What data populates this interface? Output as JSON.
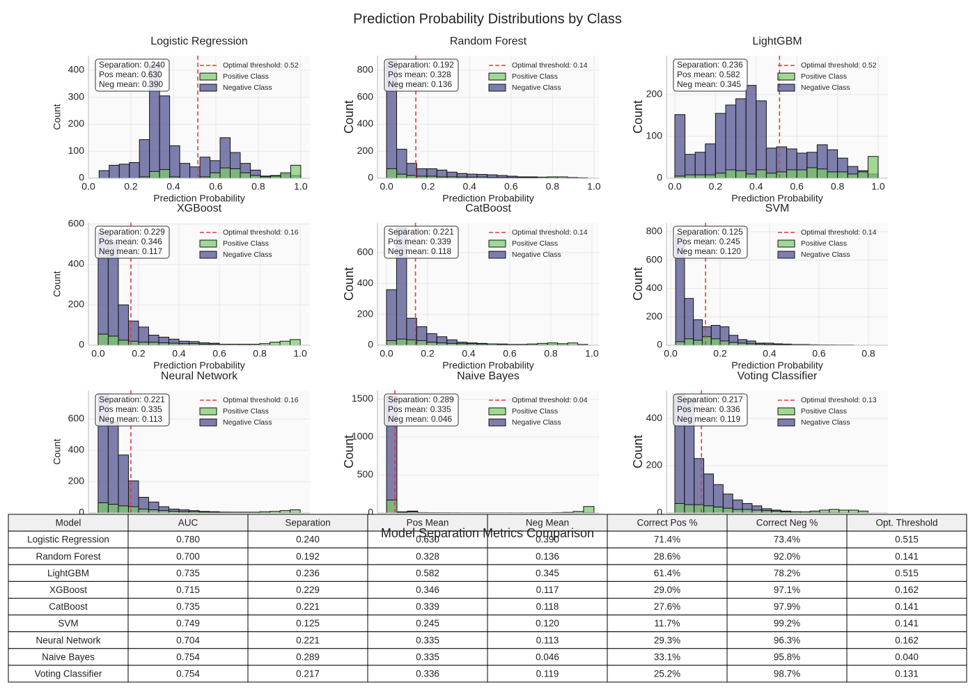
{
  "title": "Prediction Probability Distributions by Class",
  "chart_data": [
    {
      "type": "histogram",
      "title": "Logistic Regression",
      "xlabel": "Prediction Probability",
      "ylabel": "Count",
      "grid": true,
      "legend": "upper right",
      "annotation": [
        "Separation: 0.240",
        "Pos mean: 0.630",
        "Neg mean: 0.390"
      ],
      "threshold": {
        "value": 0.515,
        "label": "Optimal threshold: 0.52",
        "color": "#e8383d"
      },
      "bins": [
        0.05,
        0.0975,
        0.145,
        0.1925,
        0.24,
        0.2875,
        0.335,
        0.3825,
        0.43,
        0.4775,
        0.525,
        0.5725,
        0.62,
        0.6675,
        0.715,
        0.7625,
        0.81,
        0.8575,
        0.905,
        0.9525,
        1.0
      ],
      "series": [
        {
          "name": "Positive Class",
          "color": "#7dcc6b",
          "values": [
            0,
            0,
            0,
            0,
            5,
            25,
            32,
            5,
            0,
            0,
            5,
            20,
            38,
            35,
            20,
            10,
            5,
            8,
            20,
            48
          ]
        },
        {
          "name": "Negative Class",
          "color": "#4d4d8f",
          "values": [
            28,
            48,
            52,
            58,
            143,
            420,
            305,
            120,
            55,
            42,
            78,
            65,
            150,
            95,
            55,
            30,
            8,
            10,
            15,
            10
          ]
        }
      ],
      "xlim": [
        0,
        1.043
      ],
      "ylim": [
        0,
        454
      ],
      "xticks": [
        {
          "value": 0,
          "label": "0.0"
        },
        0.2,
        0.4,
        0.6,
        0.8,
        {
          "value": 1,
          "label": "1.0"
        }
      ],
      "yticks": [
        0,
        100,
        200,
        300,
        400
      ]
    },
    {
      "type": "histogram",
      "title": "Random Forest",
      "xlabel": "Prediction Probability",
      "ylabel": "Count",
      "grid": true,
      "legend": "upper right",
      "annotation": [
        "Separation: 0.192",
        "Pos mean: 0.328",
        "Neg mean: 0.136"
      ],
      "threshold": {
        "value": 0.141,
        "label": "Optimal threshold: 0.14",
        "color": "#e8383d"
      },
      "bins": [
        0,
        0.0485,
        0.097,
        0.1455,
        0.194,
        0.2425,
        0.291,
        0.3395,
        0.388,
        0.4365,
        0.485,
        0.5335,
        0.582,
        0.6305,
        0.679,
        0.7275,
        0.776,
        0.8245,
        0.873,
        0.9215,
        0.97
      ],
      "series": [
        {
          "name": "Positive Class",
          "color": "#7dcc6b",
          "values": [
            70,
            30,
            20,
            15,
            15,
            10,
            10,
            8,
            8,
            8,
            5,
            5,
            5,
            5,
            5,
            8,
            10,
            10,
            5,
            3
          ]
        },
        {
          "name": "Negative Class",
          "color": "#4d4d8f",
          "values": [
            870,
            215,
            110,
            70,
            70,
            60,
            45,
            35,
            30,
            28,
            25,
            20,
            15,
            10,
            10,
            5,
            5,
            3,
            2,
            1
          ]
        }
      ],
      "xlim": [
        -0.044,
        1.024
      ],
      "ylim": [
        0,
        908
      ],
      "xticks": [
        {
          "value": 0,
          "label": "0.0"
        },
        0.2,
        0.4,
        0.6,
        0.8,
        {
          "value": 1,
          "label": "1.0"
        }
      ],
      "yticks": [
        0,
        200,
        400,
        600,
        800
      ]
    },
    {
      "type": "histogram",
      "title": "LightGBM",
      "xlabel": "Prediction Probability",
      "ylabel": "Count",
      "grid": true,
      "legend": "upper right",
      "annotation": [
        "Separation: 0.236",
        "Pos mean: 0.582",
        "Neg mean: 0.345"
      ],
      "threshold": {
        "value": 0.515,
        "label": "Optimal threshold: 0.52",
        "color": "#e8383d"
      },
      "bins": [
        0,
        0.05,
        0.1,
        0.15,
        0.2,
        0.25,
        0.3,
        0.35,
        0.4,
        0.45,
        0.5,
        0.55,
        0.6,
        0.65,
        0.7,
        0.75,
        0.8,
        0.85,
        0.9,
        0.95,
        1.0
      ],
      "series": [
        {
          "name": "Positive Class",
          "color": "#7dcc6b",
          "values": [
            5,
            8,
            8,
            8,
            12,
            20,
            18,
            10,
            20,
            12,
            15,
            20,
            20,
            25,
            22,
            15,
            15,
            10,
            15,
            52
          ]
        },
        {
          "name": "Negative Class",
          "color": "#4d4d8f",
          "values": [
            152,
            57,
            62,
            82,
            155,
            175,
            190,
            222,
            185,
            72,
            75,
            70,
            60,
            62,
            80,
            68,
            48,
            28,
            18,
            10
          ]
        }
      ],
      "xlim": [
        -0.041,
        1.048
      ],
      "ylim": [
        0,
        293
      ],
      "xticks": [
        {
          "value": 0,
          "label": "0.0"
        },
        0.2,
        0.4,
        0.6,
        0.8,
        {
          "value": 1,
          "label": "1.0"
        }
      ],
      "yticks": [
        0,
        100,
        200
      ]
    },
    {
      "type": "histogram",
      "title": "XGBoost",
      "xlabel": "Prediction Probability",
      "ylabel": "Count",
      "grid": true,
      "legend": "upper right",
      "annotation": [
        "Separation: 0.229",
        "Pos mean: 0.346",
        "Neg mean: 0.117"
      ],
      "threshold": {
        "value": 0.162,
        "label": "Optimal threshold: 0.16",
        "color": "#e8383d"
      },
      "bins": [
        0,
        0.05,
        0.1,
        0.15,
        0.2,
        0.25,
        0.3,
        0.35,
        0.4,
        0.45,
        0.5,
        0.55,
        0.6,
        0.65,
        0.7,
        0.75,
        0.8,
        0.85,
        0.9,
        0.95,
        1.0
      ],
      "series": [
        {
          "name": "Positive Class",
          "color": "#7dcc6b",
          "values": [
            55,
            45,
            25,
            20,
            15,
            15,
            12,
            10,
            8,
            8,
            5,
            5,
            5,
            5,
            5,
            5,
            8,
            15,
            20,
            28
          ]
        },
        {
          "name": "Negative Class",
          "color": "#4d4d8f",
          "values": [
            560,
            510,
            200,
            120,
            90,
            50,
            40,
            30,
            20,
            18,
            12,
            10,
            5,
            5,
            3,
            2,
            1,
            1,
            0,
            0
          ]
        }
      ],
      "xlim": [
        -0.048,
        1.048
      ],
      "ylim": [
        0,
        607
      ],
      "xticks": [
        {
          "value": 0,
          "label": "0.0"
        },
        0.2,
        0.4,
        0.6,
        0.8,
        {
          "value": 1,
          "label": "1.0"
        }
      ],
      "yticks": [
        0,
        200,
        400,
        600
      ]
    },
    {
      "type": "histogram",
      "title": "CatBoost",
      "xlabel": "Prediction Probability",
      "ylabel": "Count",
      "grid": true,
      "legend": "upper right",
      "annotation": [
        "Separation: 0.221",
        "Pos mean: 0.339",
        "Neg mean: 0.118"
      ],
      "threshold": {
        "value": 0.141,
        "label": "Optimal threshold: 0.14",
        "color": "#e8383d"
      },
      "bins": [
        0,
        0.049,
        0.098,
        0.147,
        0.196,
        0.245,
        0.294,
        0.343,
        0.392,
        0.441,
        0.49,
        0.539,
        0.588,
        0.637,
        0.686,
        0.735,
        0.784,
        0.833,
        0.882,
        0.931,
        0.98
      ],
      "series": [
        {
          "name": "Positive Class",
          "color": "#7dcc6b",
          "values": [
            30,
            40,
            35,
            30,
            20,
            15,
            12,
            10,
            10,
            8,
            8,
            5,
            5,
            5,
            8,
            12,
            15,
            10,
            15,
            5
          ]
        },
        {
          "name": "Negative Class",
          "color": "#4d4d8f",
          "values": [
            360,
            760,
            175,
            120,
            75,
            55,
            35,
            20,
            15,
            12,
            8,
            8,
            5,
            5,
            5,
            3,
            3,
            2,
            1,
            1
          ]
        }
      ],
      "xlim": [
        -0.044,
        1.034
      ],
      "ylim": [
        0,
        794
      ],
      "xticks": [
        {
          "value": 0,
          "label": "0.0"
        },
        0.2,
        0.4,
        0.6,
        0.8,
        {
          "value": 1,
          "label": "1.0"
        }
      ],
      "yticks": [
        0,
        200,
        400,
        600
      ]
    },
    {
      "type": "histogram",
      "title": "SVM",
      "xlabel": "Prediction Probability",
      "ylabel": "Count",
      "grid": true,
      "legend": "upper right",
      "annotation": [
        "Separation: 0.125",
        "Pos mean: 0.245",
        "Neg mean: 0.120"
      ],
      "threshold": {
        "value": 0.141,
        "label": "Optimal threshold: 0.14",
        "color": "#e8383d"
      },
      "bins": [
        0.02,
        0.056,
        0.092,
        0.128,
        0.164,
        0.2,
        0.236,
        0.272,
        0.308,
        0.344,
        0.38,
        0.416,
        0.452,
        0.488,
        0.524,
        0.56,
        0.596,
        0.632,
        0.668,
        0.704,
        0.74
      ],
      "series": [
        {
          "name": "Positive Class",
          "color": "#7dcc6b",
          "values": [
            25,
            45,
            35,
            60,
            45,
            30,
            20,
            15,
            10,
            8,
            5,
            5,
            5,
            5,
            3,
            3,
            2,
            2,
            1,
            1
          ]
        },
        {
          "name": "Negative Class",
          "color": "#4d4d8f",
          "values": [
            780,
            330,
            180,
            130,
            140,
            130,
            70,
            40,
            30,
            15,
            15,
            10,
            8,
            5,
            5,
            3,
            2,
            1,
            1,
            1
          ]
        }
      ],
      "xlim": [
        -0.017,
        0.879
      ],
      "ylim": [
        0,
        864
      ],
      "xticks": [
        {
          "value": 0,
          "label": "0.0"
        },
        0.2,
        0.4,
        0.6,
        0.8
      ],
      "yticks": [
        0,
        200,
        400,
        600,
        800
      ]
    },
    {
      "type": "histogram",
      "title": "Neural Network",
      "ylabel": "Count",
      "grid": true,
      "legend": "upper right",
      "annotation": [
        "Separation: 0.221",
        "Pos mean: 0.335",
        "Neg mean: 0.113"
      ],
      "threshold": {
        "value": 0.162,
        "label": "Optimal threshold: 0.16",
        "color": "#e8383d"
      },
      "bins": [
        0,
        0.05,
        0.1,
        0.15,
        0.2,
        0.25,
        0.3,
        0.35,
        0.4,
        0.45,
        0.5,
        0.55,
        0.6,
        0.65,
        0.7,
        0.75,
        0.8,
        0.85,
        0.9,
        0.95,
        1.0
      ],
      "series": [
        {
          "name": "Positive Class",
          "color": "#7dcc6b",
          "values": [
            65,
            55,
            45,
            40,
            25,
            20,
            15,
            10,
            8,
            8,
            5,
            5,
            5,
            5,
            5,
            5,
            8,
            10,
            15,
            20
          ]
        },
        {
          "name": "Negative Class",
          "color": "#4d4d8f",
          "values": [
            760,
            580,
            370,
            205,
            100,
            70,
            40,
            25,
            20,
            15,
            10,
            8,
            5,
            4,
            3,
            2,
            2,
            1,
            1,
            1
          ]
        }
      ],
      "xlim": [
        -0.048,
        1.048
      ],
      "ylim": [
        0,
        782
      ],
      "yticks": [
        0,
        200,
        400,
        600
      ]
    },
    {
      "type": "histogram",
      "title": "Naive Bayes",
      "ylabel": "Count",
      "grid": true,
      "legend": "upper right",
      "annotation": [
        "Separation: 0.289",
        "Pos mean: 0.335",
        "Neg mean: 0.046"
      ],
      "threshold": {
        "value": 0.04,
        "label": "Optimal threshold: 0.04",
        "color": "#e8383d"
      },
      "bins": [
        0,
        0.05,
        0.1,
        0.15,
        0.2,
        0.25,
        0.3,
        0.35,
        0.4,
        0.45,
        0.5,
        0.55,
        0.6,
        0.65,
        0.7,
        0.75,
        0.8,
        0.85,
        0.9,
        0.95,
        1.0
      ],
      "series": [
        {
          "name": "Positive Class",
          "color": "#7dcc6b",
          "values": [
            170,
            10,
            15,
            5,
            3,
            3,
            2,
            2,
            2,
            2,
            2,
            2,
            2,
            2,
            3,
            3,
            5,
            8,
            20,
            85
          ]
        },
        {
          "name": "Negative Class",
          "color": "#4d4d8f",
          "values": [
            1540,
            15,
            25,
            5,
            3,
            2,
            2,
            1,
            1,
            1,
            1,
            1,
            1,
            1,
            1,
            1,
            1,
            1,
            2,
            5
          ]
        }
      ],
      "xlim": [
        -0.044,
        1.024
      ],
      "ylim": [
        0,
        1615
      ],
      "yticks": [
        0,
        500,
        1000,
        1500
      ]
    },
    {
      "type": "histogram",
      "title": "Voting Classifier",
      "ylabel": "Count",
      "grid": true,
      "legend": "upper right",
      "annotation": [
        "Separation: 0.217",
        "Pos mean: 0.336",
        "Neg mean: 0.119"
      ],
      "threshold": {
        "value": 0.131,
        "label": "Optimal threshold: 0.13",
        "color": "#e8383d"
      },
      "bins": [
        0,
        0.0475,
        0.095,
        0.1425,
        0.19,
        0.2375,
        0.285,
        0.3325,
        0.38,
        0.4275,
        0.475,
        0.5225,
        0.57,
        0.6175,
        0.665,
        0.7125,
        0.76,
        0.8075,
        0.855,
        0.9025,
        0.95
      ],
      "series": [
        {
          "name": "Positive Class",
          "color": "#7dcc6b",
          "values": [
            40,
            35,
            35,
            30,
            25,
            20,
            15,
            15,
            12,
            10,
            8,
            5,
            5,
            5,
            8,
            12,
            15,
            12,
            12,
            8
          ]
        },
        {
          "name": "Negative Class",
          "color": "#4d4d8f",
          "values": [
            500,
            480,
            230,
            165,
            120,
            80,
            55,
            40,
            30,
            18,
            12,
            8,
            5,
            4,
            3,
            2,
            2,
            1,
            1,
            1
          ]
        }
      ],
      "xlim": [
        -0.041,
        1.048
      ],
      "ylim": [
        0,
        518
      ],
      "yticks": [
        0,
        200,
        400
      ]
    }
  ],
  "table": {
    "title": "Model Separation Metrics Comparison",
    "columns": [
      "Model",
      "AUC",
      "Separation",
      "Pos Mean",
      "Neg Mean",
      "Correct Pos %",
      "Correct Neg %",
      "Opt. Threshold"
    ],
    "rows": [
      [
        "Logistic Regression",
        "0.780",
        "0.240",
        "0.630",
        "0.390",
        "71.4%",
        "73.4%",
        "0.515"
      ],
      [
        "Random Forest",
        "0.700",
        "0.192",
        "0.328",
        "0.136",
        "28.6%",
        "92.0%",
        "0.141"
      ],
      [
        "LightGBM",
        "0.735",
        "0.236",
        "0.582",
        "0.345",
        "61.4%",
        "78.2%",
        "0.515"
      ],
      [
        "XGBoost",
        "0.715",
        "0.229",
        "0.346",
        "0.117",
        "29.0%",
        "97.1%",
        "0.162"
      ],
      [
        "CatBoost",
        "0.735",
        "0.221",
        "0.339",
        "0.118",
        "27.6%",
        "97.9%",
        "0.141"
      ],
      [
        "SVM",
        "0.749",
        "0.125",
        "0.245",
        "0.120",
        "11.7%",
        "99.2%",
        "0.141"
      ],
      [
        "Neural Network",
        "0.704",
        "0.221",
        "0.335",
        "0.113",
        "29.3%",
        "96.3%",
        "0.162"
      ],
      [
        "Naive Bayes",
        "0.754",
        "0.289",
        "0.335",
        "0.046",
        "33.1%",
        "95.8%",
        "0.040"
      ],
      [
        "Voting Classifier",
        "0.754",
        "0.217",
        "0.336",
        "0.119",
        "25.2%",
        "98.7%",
        "0.131"
      ]
    ]
  }
}
